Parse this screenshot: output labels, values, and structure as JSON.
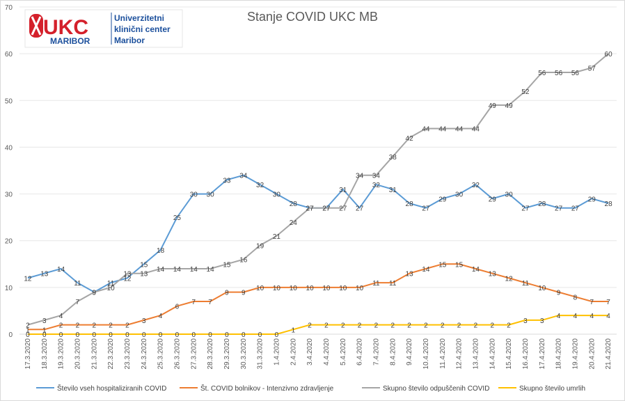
{
  "chart_data": {
    "type": "line",
    "title": "Stanje  COVID UKC MB",
    "ylim": [
      0,
      70
    ],
    "yticks": [
      0,
      10,
      20,
      30,
      40,
      50,
      60,
      70
    ],
    "grid": "horizontal",
    "legend_position": "bottom",
    "categories": [
      "17.3.2020",
      "18.3.2020",
      "19.3.2020",
      "20.3.2020",
      "21.3.2020",
      "22.3.2020",
      "23.3.2020",
      "24.3.2020",
      "25.3.2020",
      "26.3.2020",
      "27.3.2020",
      "28.3.2020",
      "29.3.2020",
      "30.3.2020",
      "31.3.2020",
      "1.4.2020",
      "2.4.2020",
      "3.4.2020",
      "4.4.2020",
      "5.4.2020",
      "6.4.2020",
      "7.4.2020",
      "8.4.2020",
      "9.4.2020",
      "10.4.2020",
      "11.4.2020",
      "12.4.2020",
      "13.4.2020",
      "14.4.2020",
      "15.4.2020",
      "16.4.2020",
      "17.4.2020",
      "18.4.2020",
      "19.4.2020",
      "20.4.2020",
      "21.4.2020"
    ],
    "series": [
      {
        "name": "Število vseh hospitaliziranih COVID",
        "color": "#5b9bd5",
        "values": [
          12,
          13,
          14,
          11,
          9,
          11,
          12,
          15,
          18,
          25,
          30,
          30,
          33,
          34,
          32,
          30,
          28,
          27,
          27,
          31,
          27,
          32,
          31,
          28,
          27,
          29,
          30,
          32,
          29,
          30,
          27,
          28,
          27,
          27,
          29,
          28
        ]
      },
      {
        "name": "Št. COVID bolnikov - Intenzivno zdravljenje",
        "color": "#ed7d31",
        "values": [
          1,
          1,
          2,
          2,
          2,
          2,
          2,
          3,
          4,
          6,
          7,
          7,
          9,
          9,
          10,
          10,
          10,
          10,
          10,
          10,
          10,
          11,
          11,
          13,
          14,
          15,
          15,
          14,
          13,
          12,
          11,
          10,
          9,
          8,
          7,
          7
        ]
      },
      {
        "name": "Skupno število odpuščenih COVID",
        "color": "#a5a5a5",
        "values": [
          2,
          3,
          4,
          7,
          9,
          10,
          13,
          13,
          14,
          14,
          14,
          14,
          15,
          16,
          19,
          21,
          24,
          27,
          27,
          27,
          34,
          34,
          38,
          42,
          44,
          44,
          44,
          44,
          49,
          49,
          52,
          56,
          56,
          56,
          57,
          60
        ]
      },
      {
        "name": "Skupno število umrlih",
        "color": "#ffc000",
        "values": [
          0,
          0,
          0,
          0,
          0,
          0,
          0,
          0,
          0,
          0,
          0,
          0,
          0,
          0,
          0,
          0,
          1,
          2,
          2,
          2,
          2,
          2,
          2,
          2,
          2,
          2,
          2,
          2,
          2,
          2,
          3,
          3,
          4,
          4,
          4,
          4
        ]
      }
    ]
  },
  "logo": {
    "letters": "UKC",
    "city": "MARIBOR",
    "name_line1": "Univerzitetni",
    "name_line2": "klinični center",
    "name_line3": "Maribor",
    "brand_blue": "#1b4f9c",
    "brand_red": "#d4202b"
  }
}
